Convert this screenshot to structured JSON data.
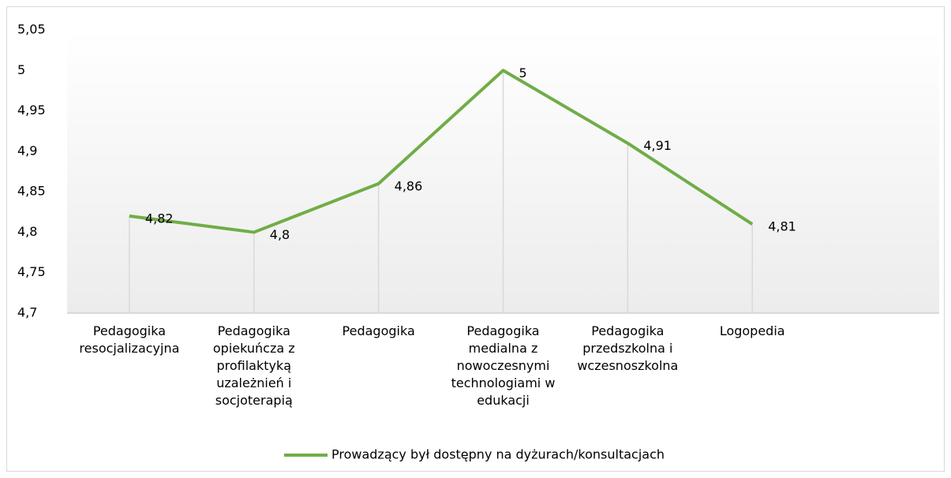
{
  "chart_data": {
    "type": "line",
    "categories": [
      "Pedagogika resocjalizacyjna",
      "Pedagogika opiekuńcza z profilaktyką uzależnień i socjoterapią",
      "Pedagogika",
      "Pedagogika medialna z nowoczesnymi technologiami w edukacji",
      "Pedagogika przedszkolna i wczesnoszkolna",
      "Logopedia",
      null
    ],
    "series": [
      {
        "name": "Prowadzący był dostępny na dyżurach/konsultacjach",
        "color": "#70ad47",
        "values": [
          4.82,
          4.8,
          4.86,
          5,
          4.91,
          4.81,
          null
        ],
        "value_labels": [
          "4,82",
          "4,8",
          "4,86",
          "5",
          "4,91",
          "4,81",
          null
        ]
      }
    ],
    "ylim": [
      4.7,
      5.05
    ],
    "yticks": [
      {
        "value": 4.7,
        "label": "4,7"
      },
      {
        "value": 4.75,
        "label": "4,75"
      },
      {
        "value": 4.8,
        "label": "4,8"
      },
      {
        "value": 4.85,
        "label": "4,85"
      },
      {
        "value": 4.9,
        "label": "4,9"
      },
      {
        "value": 4.95,
        "label": "4,95"
      },
      5,
      {
        "value": 5.05,
        "label": "5,05"
      }
    ],
    "legend": "bottom"
  }
}
